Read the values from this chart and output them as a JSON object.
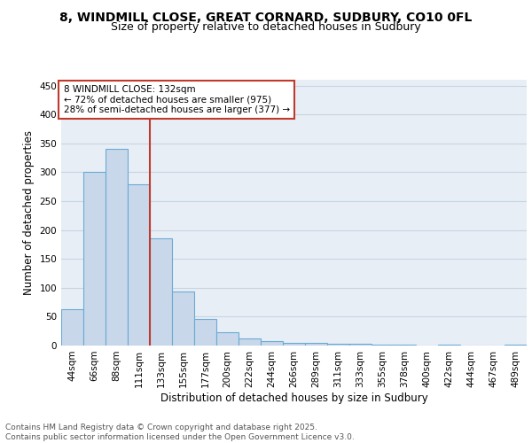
{
  "title_line1": "8, WINDMILL CLOSE, GREAT CORNARD, SUDBURY, CO10 0FL",
  "title_line2": "Size of property relative to detached houses in Sudbury",
  "xlabel": "Distribution of detached houses by size in Sudbury",
  "ylabel": "Number of detached properties",
  "categories": [
    "44sqm",
    "66sqm",
    "88sqm",
    "111sqm",
    "133sqm",
    "155sqm",
    "177sqm",
    "200sqm",
    "222sqm",
    "244sqm",
    "266sqm",
    "289sqm",
    "311sqm",
    "333sqm",
    "355sqm",
    "378sqm",
    "400sqm",
    "422sqm",
    "444sqm",
    "467sqm",
    "489sqm"
  ],
  "values": [
    63,
    301,
    340,
    279,
    185,
    93,
    46,
    23,
    13,
    7,
    5,
    5,
    3,
    3,
    2,
    1,
    0,
    1,
    0,
    0,
    2
  ],
  "bar_color": "#c8d8ea",
  "bar_edge_color": "#6aaad4",
  "bar_linewidth": 0.8,
  "vline_color": "#c0392b",
  "annotation_text": "8 WINDMILL CLOSE: 132sqm\n← 72% of detached houses are smaller (975)\n28% of semi-detached houses are larger (377) →",
  "annotation_box_color": "#c0392b",
  "ylim": [
    0,
    460
  ],
  "yticks": [
    0,
    50,
    100,
    150,
    200,
    250,
    300,
    350,
    400,
    450
  ],
  "grid_color": "#c8d4e0",
  "background_color": "#e8eef6",
  "footer_text": "Contains HM Land Registry data © Crown copyright and database right 2025.\nContains public sector information licensed under the Open Government Licence v3.0.",
  "title_fontsize": 10,
  "subtitle_fontsize": 9,
  "axis_label_fontsize": 8.5,
  "tick_fontsize": 7.5,
  "footer_fontsize": 6.5
}
